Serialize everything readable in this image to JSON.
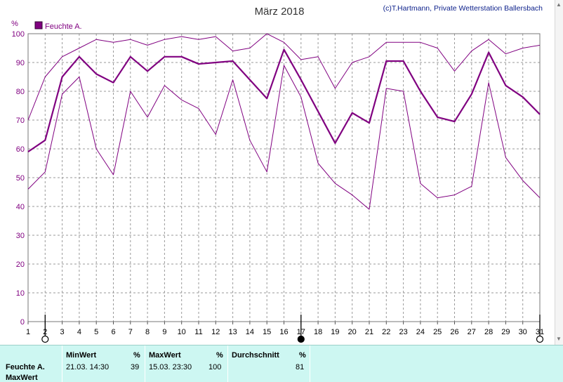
{
  "chart_data": {
    "type": "line",
    "title": "März 2018",
    "credit": "(c)T.Hartmann, Private Wetterstation Ballersbach",
    "ylabel": "%",
    "ylim": [
      0,
      100
    ],
    "yticks": [
      0,
      10,
      20,
      30,
      40,
      50,
      60,
      70,
      80,
      90,
      100
    ],
    "x": [
      1,
      2,
      3,
      4,
      5,
      6,
      7,
      8,
      9,
      10,
      11,
      12,
      13,
      14,
      15,
      16,
      17,
      18,
      19,
      20,
      21,
      22,
      23,
      24,
      25,
      26,
      27,
      28,
      29,
      30,
      31
    ],
    "grid": true,
    "legend_position": "top-left",
    "series": [
      {
        "name": "Feuchte A.",
        "role": "avg",
        "color": "#800080",
        "values": [
          59,
          63,
          85,
          92,
          86,
          83,
          92,
          87,
          92,
          92,
          89.5,
          90,
          90.5,
          84,
          77.5,
          94.5,
          84,
          73,
          62,
          72.5,
          69,
          90.5,
          90.5,
          80,
          71,
          69.5,
          79,
          93.5,
          82,
          78,
          72
        ]
      },
      {
        "role": "max",
        "color": "#800080",
        "values": [
          70,
          85,
          92,
          95,
          98,
          97,
          98,
          96,
          98,
          99,
          98,
          99,
          94,
          95,
          100,
          97,
          91,
          92,
          81,
          90,
          92,
          97,
          97,
          97,
          95,
          87,
          94,
          98,
          93,
          95,
          96
        ]
      },
      {
        "role": "min",
        "color": "#800080",
        "values": [
          46,
          52,
          79,
          85,
          60,
          51,
          80,
          71,
          82,
          77,
          74,
          65,
          84,
          63,
          52,
          89,
          78,
          55,
          48,
          44,
          39,
          81,
          80,
          48,
          43,
          44,
          47,
          83,
          57,
          49,
          43
        ]
      }
    ],
    "moon_markers": [
      {
        "day": 2,
        "phase": "full"
      },
      {
        "day": 17,
        "phase": "new"
      },
      {
        "day": 31,
        "phase": "full"
      }
    ]
  },
  "summary": {
    "headers": {
      "min": "MinWert",
      "max": "MaxWert",
      "avg": "Durchschnitt",
      "unit": "%"
    },
    "row_label": "Feuchte A.",
    "row2_label": "MaxWert",
    "min_time": "21.03.  14:30",
    "min_value": "39",
    "max_time": "15.03.  23:30",
    "max_value": "100",
    "avg_value": "81"
  },
  "colors": {
    "series": "#800080",
    "axis_text": "#800080",
    "panel": "#cdf7f2"
  }
}
